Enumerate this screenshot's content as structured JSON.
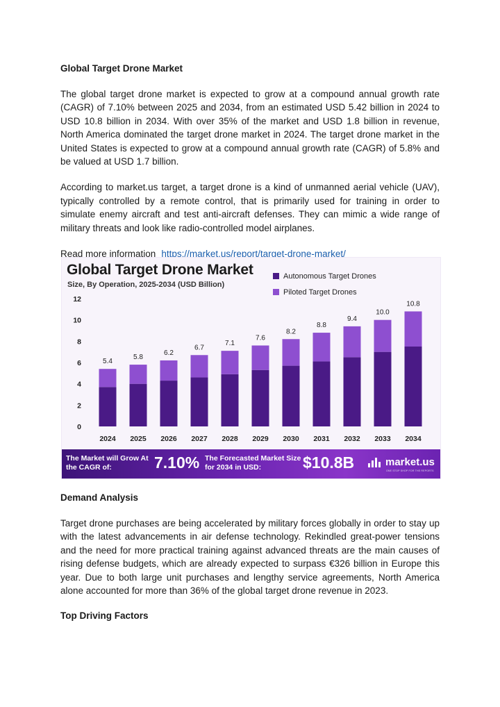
{
  "doc": {
    "heading1": "Global Target Drone Market",
    "para1": "The global target drone market is expected to grow at a compound annual growth rate (CAGR) of 7.10% between 2025 and 2034, from an estimated USD 5.42 billion in 2024 to USD 10.8 billion in 2034. With over 35% of the market and USD 1.8 billion in revenue, North America dominated the target drone market in 2024. The target drone market in the United States is expected to grow at a compound annual growth rate (CAGR) of 5.8% and be valued at USD 1.7 billion.",
    "para2": "According to market.us target, a target drone is a kind of unmanned aerial vehicle (UAV), typically controlled by a remote control, that is primarily used for training in order to simulate enemy aircraft and test anti-aircraft defenses. They can mimic a wide range of military threats and look like radio-controlled model airplanes.",
    "read_more_label": "Read more information",
    "read_more_link": "https://market.us/report/target-drone-market/",
    "heading2": "Demand Analysis",
    "para3": "Target drone purchases are being accelerated by military forces globally in order to stay up with the latest advancements in air defense technology. Rekindled great-power tensions and the need for more practical training against advanced threats are the main causes of rising defense budgets, which are already expected to surpass €326 billion in Europe this year. Due to both large unit purchases and lengthy service agreements, North America alone accounted for more than 36% of the global target drone revenue in 2023.",
    "heading3": "Top Driving Factors"
  },
  "infographic": {
    "title": "Global Target Drone Market",
    "subtitle": "Size, By Operation, 2025-2034 (USD Billion)",
    "banner_label1": "The Market will Grow At the CAGR of:",
    "banner_value1": "7.10%",
    "banner_label2": "The Forecasted Market Size for 2034 in USD:",
    "banner_value2": "$10.8B",
    "logo_text": "market.us",
    "logo_tagline": "ONE STOP SHOP FOR THE REPORTS"
  },
  "chart_data": {
    "type": "bar",
    "stacked": true,
    "categories": [
      "2024",
      "2025",
      "2026",
      "2027",
      "2028",
      "2029",
      "2030",
      "2031",
      "2032",
      "2033",
      "2034"
    ],
    "series": [
      {
        "name": "Autonomous Target Drones",
        "color": "#4a1a86",
        "values": [
          3.7,
          4.0,
          4.3,
          4.6,
          4.9,
          5.3,
          5.7,
          6.1,
          6.5,
          7.0,
          7.5
        ]
      },
      {
        "name": "Piloted Target Drones",
        "color": "#8e4fd0",
        "values": [
          1.7,
          1.8,
          1.9,
          2.1,
          2.2,
          2.3,
          2.5,
          2.7,
          2.9,
          3.0,
          3.3
        ]
      }
    ],
    "totals": [
      "5.4",
      "5.8",
      "6.2",
      "6.7",
      "7.1",
      "7.6",
      "8.2",
      "8.8",
      "9.4",
      "10.0",
      "10.8"
    ],
    "yticks": [
      0,
      2,
      4,
      6,
      8,
      10,
      12
    ],
    "ylim": [
      0,
      12
    ],
    "grid": false,
    "legend": "top-right"
  }
}
